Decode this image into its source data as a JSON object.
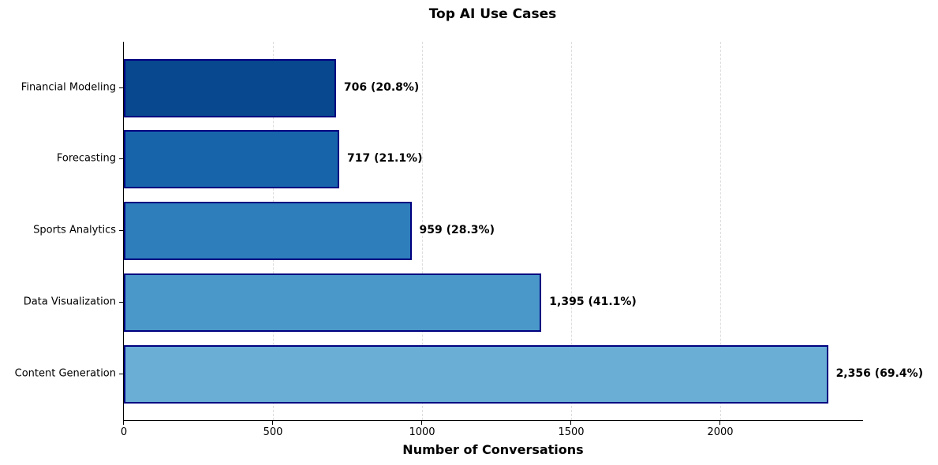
{
  "chart_data": {
    "type": "bar",
    "orientation": "horizontal",
    "title": "Top AI Use Cases",
    "xlabel": "Number of Conversations",
    "ylabel": "",
    "categories": [
      "Financial Modeling",
      "Forecasting",
      "Sports Analytics",
      "Data Visualization",
      "Content Generation"
    ],
    "values": [
      706,
      717,
      959,
      1395,
      2356
    ],
    "value_labels": [
      "706 (20.8%)",
      "717 (21.1%)",
      "959 (28.3%)",
      "1,395 (41.1%)",
      "2,356 (69.4%)"
    ],
    "percentages": [
      20.8,
      21.1,
      28.3,
      41.1,
      69.4
    ],
    "colors": [
      "#08488e",
      "#1764ab",
      "#2e7ebc",
      "#4a98c9",
      "#6aaed6"
    ],
    "edge_color": "#000080",
    "xticks": [
      0,
      500,
      1000,
      1500,
      2000
    ],
    "xtick_labels": [
      "0",
      "500",
      "1000",
      "1500",
      "2000"
    ],
    "xlim": [
      0,
      2474
    ],
    "grid": {
      "axis": "x",
      "style": "dashed"
    },
    "legend": null
  }
}
